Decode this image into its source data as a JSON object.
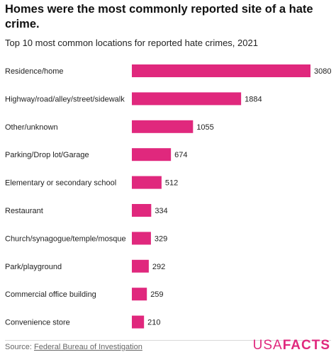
{
  "header": {
    "title": "Homes were the most commonly reported site of a hate crime.",
    "subtitle": "Top 10 most common locations for reported hate crimes, 2021"
  },
  "footer": {
    "source_prefix": "Source:",
    "source_link": "Federal Bureau of Investigation",
    "logo_light": "USA",
    "logo_bold": "FACTS"
  },
  "colors": {
    "bar": "#e0287d",
    "brand": "#e0287d"
  },
  "chart_data": {
    "type": "bar",
    "orientation": "horizontal",
    "title": "Homes were the most commonly reported site of a hate crime.",
    "subtitle": "Top 10 most common locations for reported hate crimes, 2021",
    "categories": [
      "Residence/home",
      "Highway/road/alley/street/sidewalk",
      "Other/unknown",
      "Parking/Drop lot/Garage",
      "Elementary or secondary school",
      "Restaurant",
      "Church/synagogue/temple/mosque",
      "Park/playground",
      "Commercial office building",
      "Convenience store"
    ],
    "values": [
      3080,
      1884,
      1055,
      674,
      512,
      334,
      329,
      292,
      259,
      210
    ],
    "xlim": [
      0,
      3080
    ],
    "grid": false,
    "legend": "none",
    "data_labels": true
  }
}
